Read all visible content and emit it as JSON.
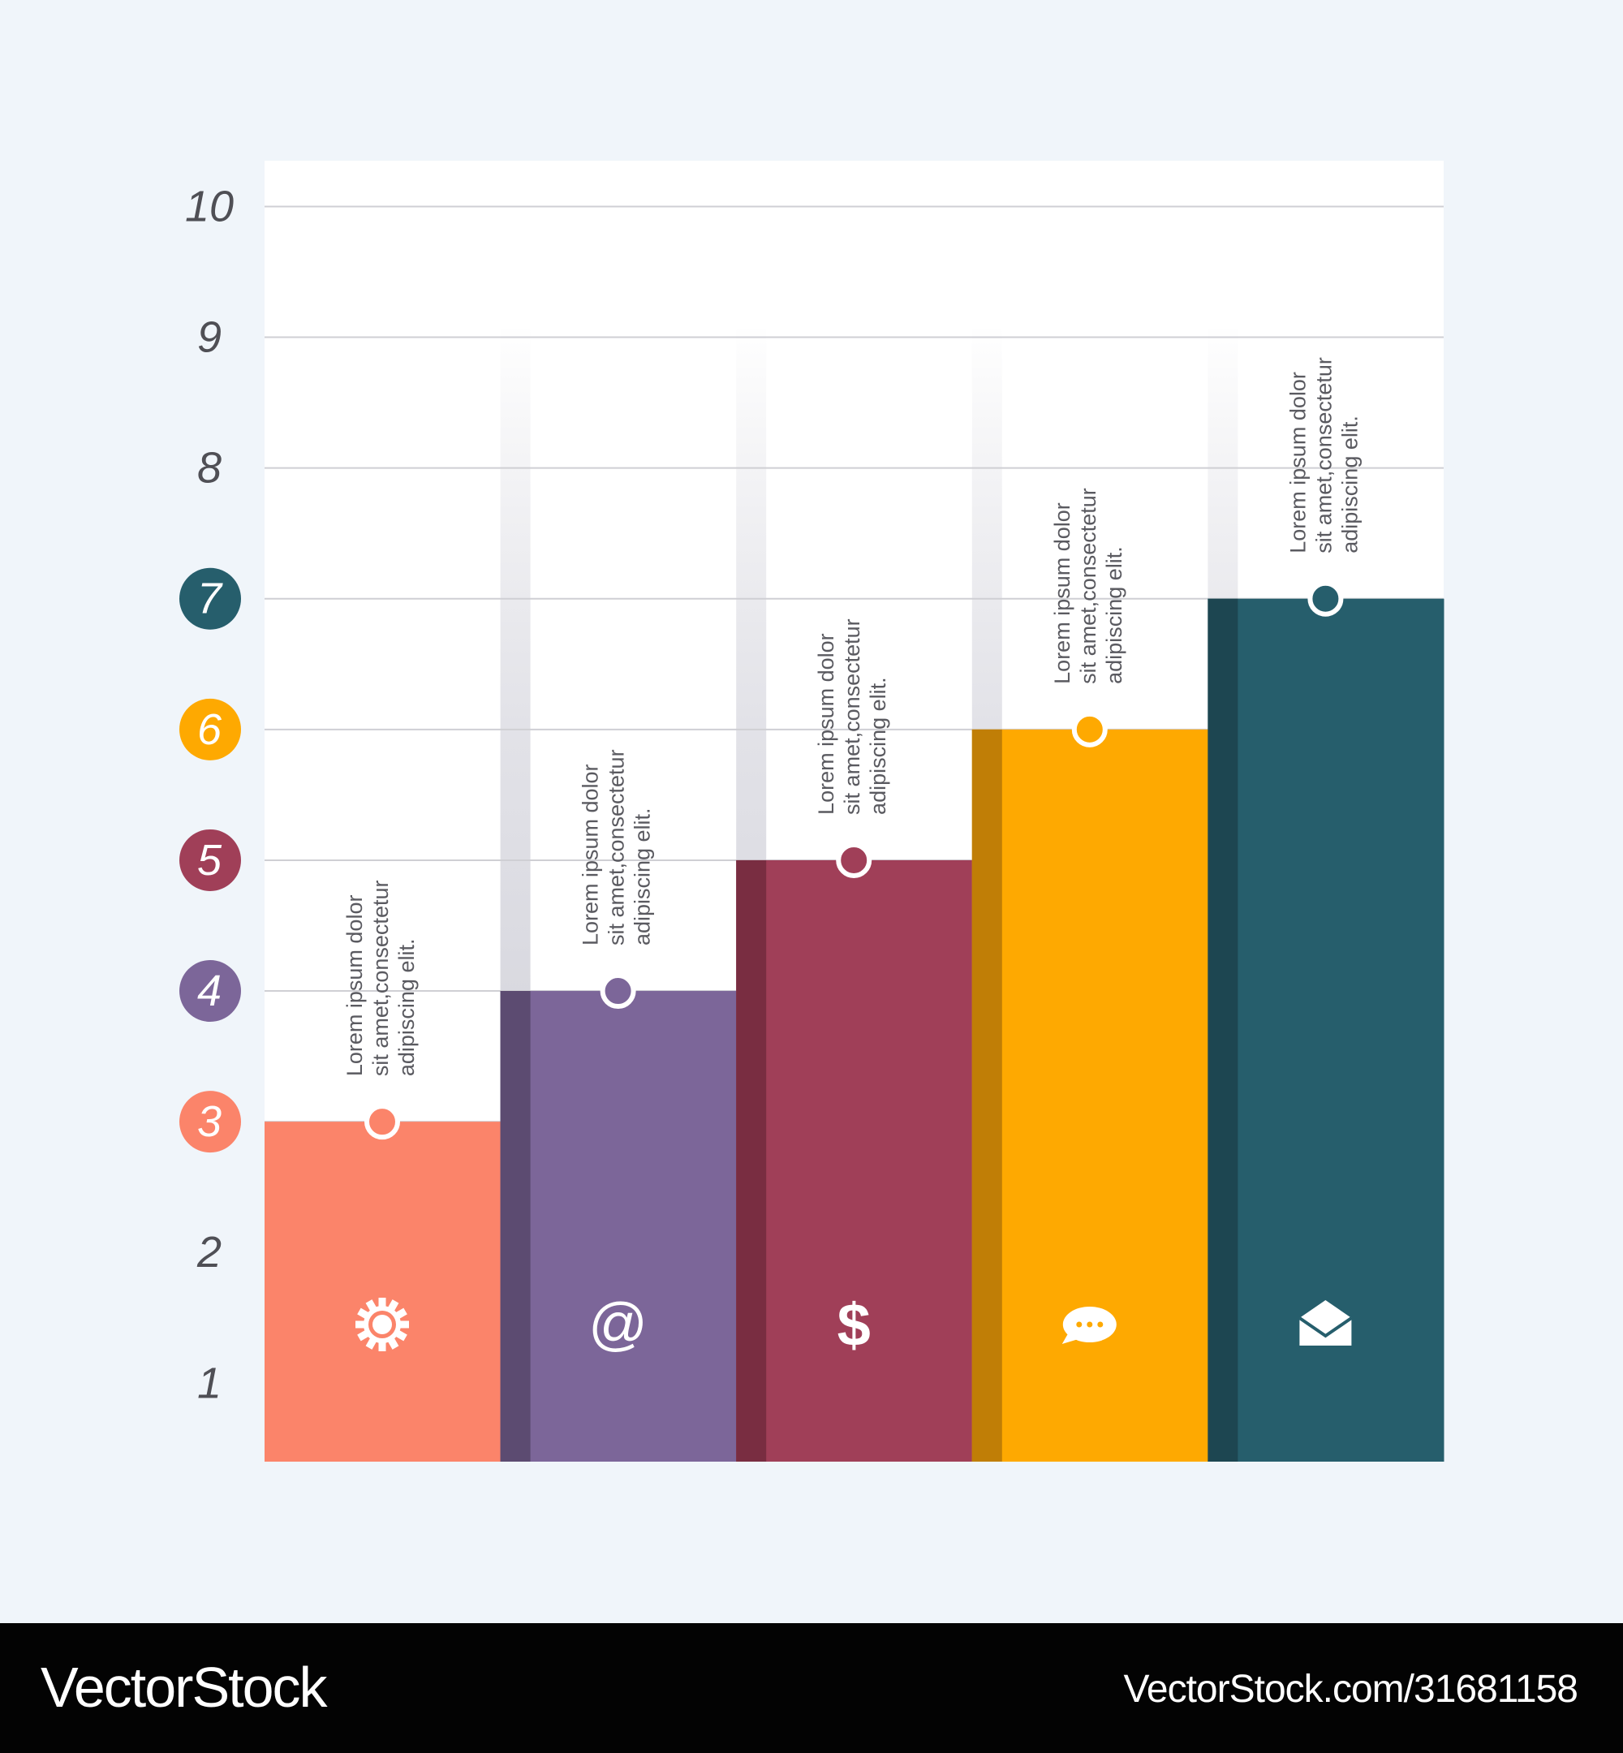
{
  "chart_data": {
    "type": "bar",
    "categories": [
      "",
      "",
      "",
      "",
      ""
    ],
    "values": [
      3,
      4,
      5,
      6,
      7
    ],
    "ylim": [
      0,
      10
    ],
    "yticks": [
      "1",
      "2",
      "3",
      "4",
      "5",
      "6",
      "7",
      "8",
      "9",
      "10"
    ],
    "grid": true,
    "colors": [
      "#fb846a",
      "#7c6699",
      "#a03f58",
      "#fea901",
      "#265e6c"
    ],
    "shade_colors": [
      "#fb846a",
      "#5c4b71",
      "#792d41",
      "#c07e06",
      "#1d4651"
    ],
    "icons": [
      "gear-icon",
      "at-sign-icon",
      "dollar-sign-icon",
      "speech-bubble-icon",
      "envelope-icon"
    ],
    "annotations": [
      [
        "Lorem ipsum dolor",
        "sit amet,consectetur",
        "adipiscing elit."
      ],
      [
        "Lorem ipsum dolor",
        "sit amet,consectetur",
        "adipiscing elit."
      ],
      [
        "Lorem ipsum dolor",
        "sit amet,consectetur",
        "adipiscing elit."
      ],
      [
        "Lorem ipsum dolor",
        "sit amet,consectetur",
        "adipiscing elit."
      ],
      [
        "Lorem ipsum dolor",
        "sit amet,consectetur",
        "adipiscing elit."
      ]
    ]
  },
  "footer": {
    "brand": "VectorStock",
    "brand_suffix": "®",
    "url": "VectorStock.com/31681158"
  }
}
